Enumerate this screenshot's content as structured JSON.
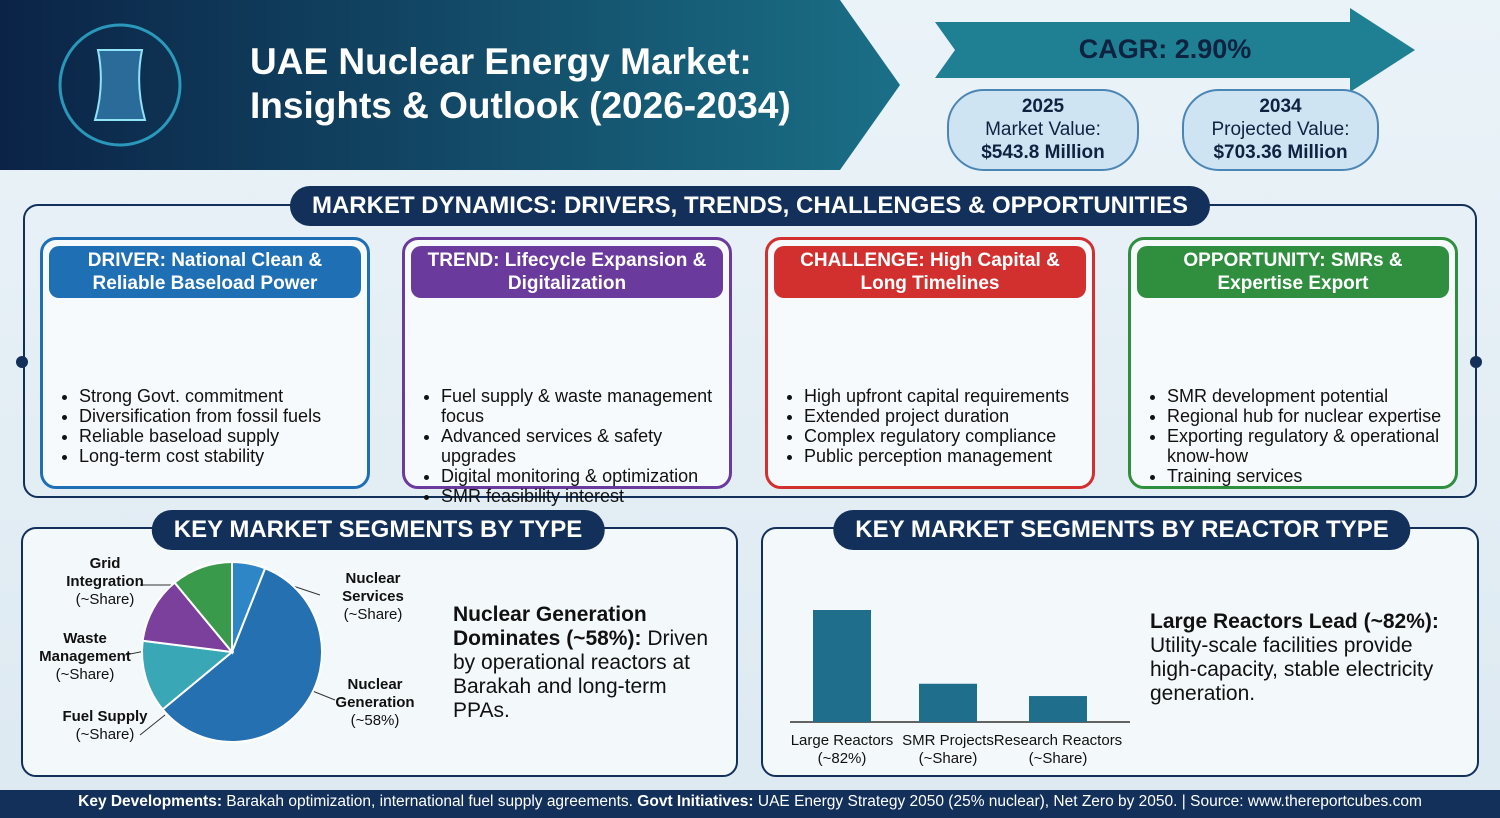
{
  "header": {
    "title_line1": "UAE Nuclear Energy Market:",
    "title_line2": "Insights & Outlook (2026-2034)",
    "cagr": "CAGR: 2.90%",
    "stats": [
      {
        "year": "2025",
        "label": "Market Value:",
        "value": "$543.8 Million"
      },
      {
        "year": "2034",
        "label": "Projected Value:",
        "value": "$703.36 Million"
      }
    ]
  },
  "dynamics": {
    "title": "MARKET DYNAMICS: DRIVERS, TRENDS, CHALLENGES & OPPORTUNITIES",
    "cards": [
      {
        "kind": "DRIVER:",
        "heading": "National Clean & Reliable Baseload Power",
        "color": "#1f6fb5",
        "bullets": [
          "Strong Govt. commitment",
          "Diversification from fossil fuels",
          "Reliable baseload supply",
          "Long-term cost stability"
        ]
      },
      {
        "kind": "TREND:",
        "heading": "Lifecycle Expansion & Digitalization",
        "color": "#6a3a9c",
        "bullets": [
          "Fuel supply & waste management focus",
          "Advanced services & safety upgrades",
          "Digital monitoring & optimization",
          "SMR feasibility interest"
        ]
      },
      {
        "kind": "CHALLENGE:",
        "heading": "High Capital & Long Timelines",
        "color": "#d1302f",
        "bullets": [
          "High upfront capital requirements",
          "Extended project duration",
          "Complex regulatory compliance",
          "Public perception management"
        ]
      },
      {
        "kind": "OPPORTUNITY:",
        "heading": "SMRs & Expertise Export",
        "color": "#2f8f3e",
        "bullets": [
          "SMR development potential",
          "Regional hub for nuclear expertise",
          "Exporting regulatory & operational know-how",
          "Training services"
        ]
      }
    ]
  },
  "chart_data": [
    {
      "type": "pie",
      "title": "KEY MARKET SEGMENTS BY TYPE",
      "categories": [
        "Nuclear Services",
        "Nuclear Generation",
        "Fuel Supply",
        "Waste Management",
        "Grid Integration"
      ],
      "values": [
        6,
        58,
        13,
        12,
        11
      ],
      "value_labels": [
        "(~Share)",
        "(~58%)",
        "(~Share)",
        "(~Share)",
        "(~Share)"
      ],
      "colors": [
        "#2f86c6",
        "#2470b0",
        "#3aa7b7",
        "#7b3f9c",
        "#3a9a4c"
      ],
      "note_heading": "Nuclear Generation Dominates (~58%):",
      "note_text": "Driven by operational reactors at Barakah and long-term PPAs."
    },
    {
      "type": "bar",
      "title": "KEY MARKET SEGMENTS BY REACTOR TYPE",
      "categories": [
        "Large Reactors",
        "SMR Projects",
        "Research Reactors"
      ],
      "values": [
        82,
        28,
        19
      ],
      "value_labels": [
        "(~82%)",
        "(~Share)",
        "(~Share)"
      ],
      "color": "#1f6e8c",
      "note_heading": "Large Reactors Lead (~82%):",
      "note_text": "Utility-scale facilities provide high-capacity, stable electricity generation."
    }
  ],
  "footer": {
    "dev_label": "Key Developments:",
    "dev_text": "Barakah optimization, international fuel supply agreements.",
    "gov_label": "Govt Initiatives:",
    "gov_text": "UAE Energy Strategy 2050 (25% nuclear), Net Zero by 2050. | Source: www.thereportcubes.com"
  }
}
